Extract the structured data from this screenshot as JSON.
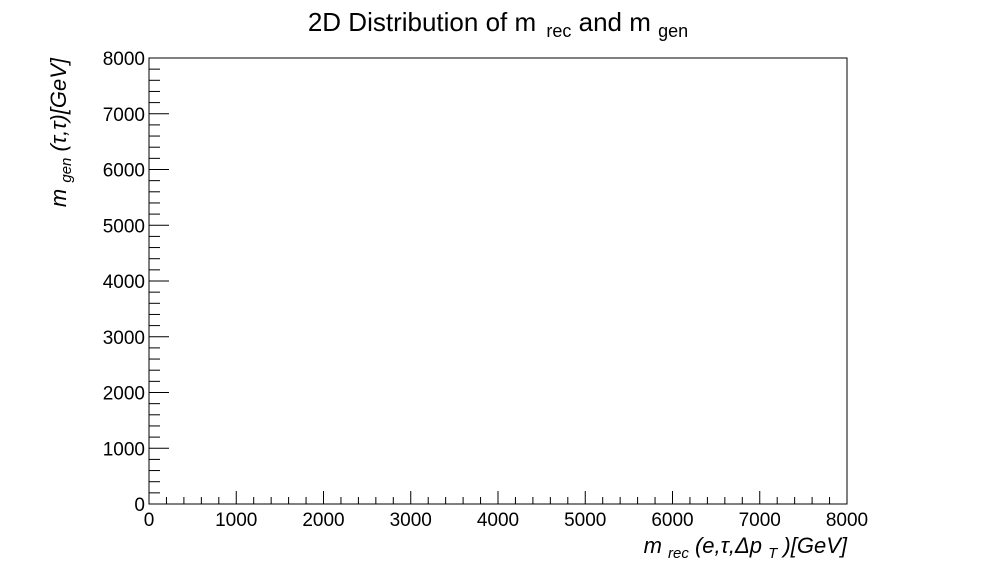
{
  "chart_data": {
    "type": "heatmap",
    "title": {
      "main": "2D Distribution of m",
      "sub1": "rec",
      "mid": " and m",
      "sub2": "gen"
    },
    "xlabel": {
      "pre": "m",
      "sub": "rec",
      "mid": "(e,τ,Δp",
      "sub2": "T",
      "post": ")[GeV]"
    },
    "ylabel": {
      "pre": "m",
      "sub": "gen",
      "post": "(τ,τ)[GeV]"
    },
    "xlim": [
      0,
      8000
    ],
    "ylim": [
      0,
      8000
    ],
    "x_ticks": [
      "0",
      "1000",
      "2000",
      "3000",
      "4000",
      "5000",
      "6000",
      "7000",
      "8000"
    ],
    "y_ticks": [
      "0",
      "1000",
      "2000",
      "3000",
      "4000",
      "5000",
      "6000",
      "7000",
      "8000"
    ],
    "x_tick_values": [
      0,
      1000,
      2000,
      3000,
      4000,
      5000,
      6000,
      7000,
      8000
    ],
    "y_tick_values": [
      0,
      1000,
      2000,
      3000,
      4000,
      5000,
      6000,
      7000,
      8000
    ],
    "x_minor_step": 200,
    "y_minor_step": 200,
    "grid": false,
    "cells": []
  }
}
